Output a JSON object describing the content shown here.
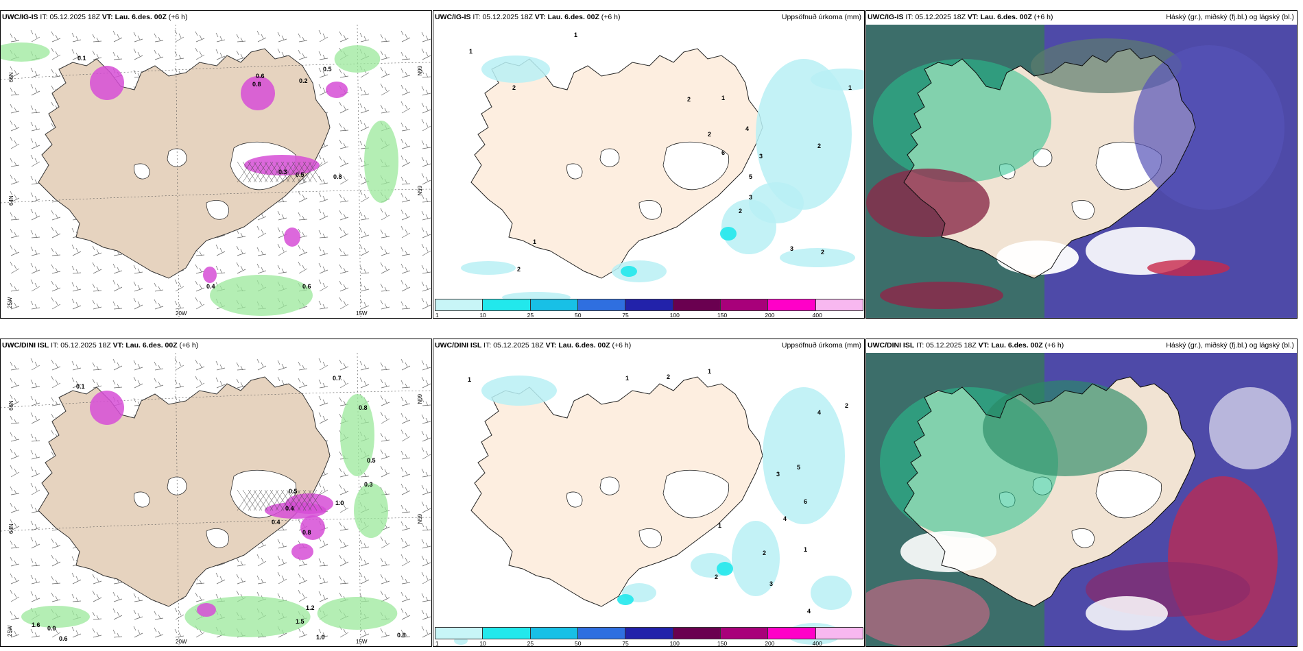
{
  "common": {
    "issue_prefix": "IT:",
    "issue_time": "05.12.2025 18Z",
    "valid_prefix": "VT:",
    "valid_time": "Lau. 6.des. 00Z",
    "lead": "(+6 h)"
  },
  "rows": [
    {
      "model": "UWC/IG-IS"
    },
    {
      "model": "UWC/DINI ISL"
    }
  ],
  "titles": {
    "precip": "Uppsöfnuð úrkoma (mm)",
    "clouds": "Háský (gr.), miðský (fj.bl.) og lágský (bl.)"
  },
  "axes": {
    "lon": [
      "20W",
      "15W"
    ],
    "lat": [
      "66N",
      "64N",
      "65N"
    ],
    "lon_left": "25W",
    "lat_right": "66N"
  },
  "colorbar": {
    "labels": [
      "1",
      "10",
      "25",
      "50",
      "75",
      "100",
      "150",
      "200",
      "400"
    ],
    "colors": [
      "#c8f5f7",
      "#22e8ec",
      "#18c0e6",
      "#2f6fe0",
      "#2222aa",
      "#6a0050",
      "#a8007a",
      "#ff00c8",
      "#f8b8f0"
    ]
  },
  "labels": {
    "wind_top": [
      "0.1",
      "0.6",
      "0.8",
      "0.5",
      "0.3",
      "0.5",
      "0.8",
      "0.4",
      "0.2",
      "0.6"
    ],
    "wind_bottom": [
      "0.1",
      "0.7",
      "0.8",
      "0.5",
      "0.3",
      "0.4",
      "0.5",
      "1.0",
      "0.8",
      "0.4",
      "1.2",
      "1.5",
      "0.9",
      "0.6",
      "1.0",
      "1.6",
      "0.8"
    ],
    "precip_top": [
      "1",
      "2",
      "1",
      "2",
      "1",
      "4",
      "3",
      "2",
      "6",
      "5",
      "3",
      "2",
      "1",
      "2",
      "3",
      "2",
      "1",
      "2"
    ],
    "precip_bottom": [
      "1",
      "1",
      "2",
      "1",
      "4",
      "2",
      "5",
      "3",
      "6",
      "4",
      "2",
      "1",
      "2",
      "3",
      "4",
      "1"
    ]
  }
}
